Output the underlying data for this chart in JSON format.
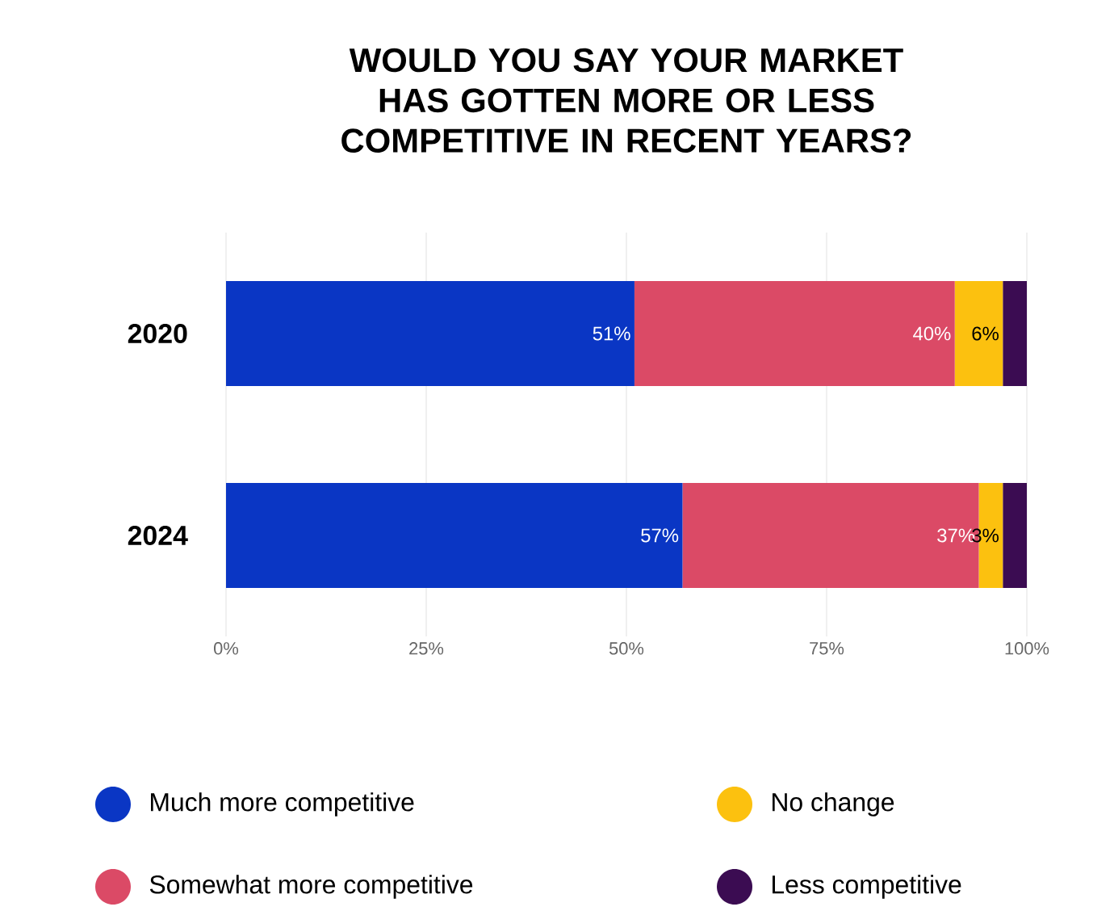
{
  "chart_data": {
    "type": "bar",
    "orientation": "horizontal",
    "stacked": true,
    "title": "WOULD YOU SAY YOUR MARKET HAS GOTTEN MORE OR LESS COMPETITIVE IN RECENT YEARS?",
    "categories": [
      "2020",
      "2024"
    ],
    "series": [
      {
        "name": "Much more competitive",
        "color": "#0a36c4",
        "values": [
          51,
          57
        ],
        "value_labels": [
          "51%",
          "57%"
        ]
      },
      {
        "name": "Somewhat more competitive",
        "color": "#db4a66",
        "values": [
          40,
          37
        ],
        "value_labels": [
          "40%",
          "37%"
        ]
      },
      {
        "name": "No change",
        "color": "#fcc10f",
        "values": [
          6,
          3
        ],
        "value_labels": [
          "6%",
          "3%"
        ]
      },
      {
        "name": "Less competitive",
        "color": "#3b0c52",
        "values": [
          3,
          3
        ],
        "value_labels": [
          null,
          null
        ]
      }
    ],
    "xlim": [
      0,
      100
    ],
    "xticks": [
      {
        "value": 0,
        "label": "0%"
      },
      {
        "value": 25,
        "label": "25%"
      },
      {
        "value": 50,
        "label": "50%"
      },
      {
        "value": 75,
        "label": "75%"
      },
      {
        "value": 100,
        "label": "100%"
      }
    ],
    "grid": "x",
    "legend": "bottom"
  }
}
